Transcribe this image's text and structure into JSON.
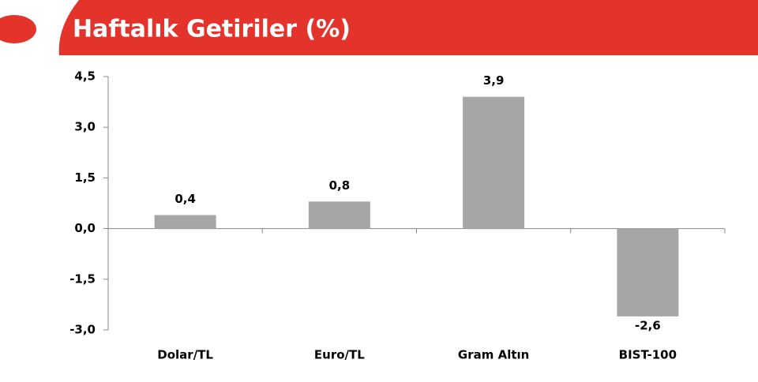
{
  "chart_data": {
    "type": "bar",
    "title": "Haftalık Getiriler (%)",
    "categories": [
      "Dolar/TL",
      "Euro/TL",
      "Gram Altın",
      "BIST-100"
    ],
    "values": [
      0.4,
      0.8,
      3.9,
      -2.6
    ],
    "value_labels": [
      "0,4",
      "0,8",
      "3,9",
      "-2,6"
    ],
    "color": "#a6a6a6",
    "ylim": [
      -3.0,
      4.5
    ],
    "yticks": [
      {
        "value": -3.0,
        "label": "-3,0"
      },
      {
        "value": -1.5,
        "label": "-1,5"
      },
      {
        "value": 0,
        "label": "0,0"
      },
      {
        "value": 1.5,
        "label": "1,5"
      },
      {
        "value": 3.0,
        "label": "3,0"
      },
      {
        "value": 4.5,
        "label": "4,5"
      }
    ]
  }
}
